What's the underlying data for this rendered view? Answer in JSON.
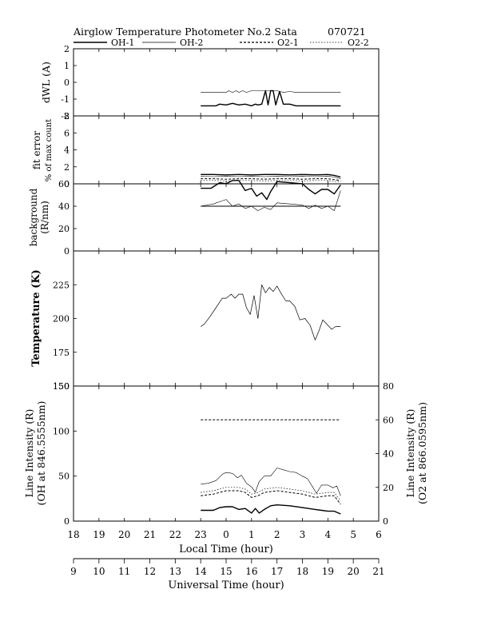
{
  "header": {
    "title": "Airglow Temperature Photometer No.2  Sata",
    "date": "070721"
  },
  "legend": [
    {
      "name": "OH-1",
      "style": "solid-thick"
    },
    {
      "name": "OH-2",
      "style": "solid-thin"
    },
    {
      "name": "O2-1",
      "style": "dashed"
    },
    {
      "name": "O2-2",
      "style": "dotted"
    }
  ],
  "chart_data": [
    {
      "type": "line",
      "panel": "dwl",
      "ylabel": "dWL (A)",
      "ylim": [
        -2,
        2
      ],
      "yticks": [
        "-2",
        "-1",
        "0",
        "1",
        "2"
      ],
      "series": [
        {
          "name": "OH-1",
          "x": [
            14.0,
            14.6,
            14.75,
            15.0,
            15.25,
            15.5,
            15.75,
            16.0,
            16.15,
            16.25,
            16.4,
            16.55,
            16.65,
            16.75,
            16.85,
            16.95,
            17.1,
            17.25,
            17.35,
            17.5,
            17.75,
            18.0,
            18.5,
            19.0,
            19.5
          ],
          "y": [
            -1.4,
            -1.4,
            -1.3,
            -1.35,
            -1.25,
            -1.35,
            -1.3,
            -1.4,
            -1.3,
            -1.35,
            -1.3,
            -0.5,
            -1.35,
            -0.5,
            -0.5,
            -1.35,
            -0.55,
            -1.3,
            -1.3,
            -1.3,
            -1.4,
            -1.4,
            -1.4,
            -1.4,
            -1.4
          ]
        },
        {
          "name": "OH-2",
          "x": [
            14.0,
            14.5,
            15.0,
            15.1,
            15.25,
            15.4,
            15.5,
            15.65,
            15.8,
            16.0,
            16.5,
            17.0,
            17.25,
            17.5,
            17.75,
            18.0,
            18.5,
            19.0,
            19.5
          ],
          "y": [
            -0.6,
            -0.6,
            -0.6,
            -0.5,
            -0.6,
            -0.5,
            -0.6,
            -0.5,
            -0.6,
            -0.5,
            -0.5,
            -0.5,
            -0.6,
            -0.55,
            -0.6,
            -0.6,
            -0.6,
            -0.6,
            -0.6
          ]
        }
      ]
    },
    {
      "type": "line",
      "panel": "fit",
      "ylabel": "fit error",
      "ylabel2": "% of max count",
      "ylim": [
        0,
        8
      ],
      "yticks": [
        "0",
        "2",
        "4",
        "6",
        "8"
      ],
      "series": [
        {
          "name": "OH-1",
          "x": [
            14.0,
            14.5,
            15.0,
            15.5,
            16.0,
            16.5,
            17.0,
            17.5,
            18.0,
            18.5,
            19.0,
            19.25,
            19.5
          ],
          "y": [
            1.1,
            1.1,
            1.05,
            1.1,
            1.05,
            1.1,
            1.1,
            1.05,
            1.1,
            1.05,
            1.1,
            1.0,
            0.8
          ]
        },
        {
          "name": "OH-2",
          "x": [
            14.0,
            14.5,
            15.0,
            15.5,
            16.0,
            16.5,
            17.0,
            17.5,
            18.0,
            18.5,
            19.0,
            19.25,
            19.5
          ],
          "y": [
            0.9,
            0.85,
            0.9,
            0.85,
            0.9,
            0.85,
            0.9,
            0.85,
            0.9,
            0.85,
            0.9,
            0.8,
            0.6
          ]
        },
        {
          "name": "O2-1",
          "x": [
            14.0,
            14.5,
            15.0,
            15.5,
            16.0,
            16.5,
            17.0,
            17.5,
            18.0,
            18.5,
            19.0,
            19.25,
            19.5
          ],
          "y": [
            0.6,
            0.6,
            0.55,
            0.6,
            0.6,
            0.55,
            0.6,
            0.6,
            0.55,
            0.6,
            0.6,
            0.5,
            0.4
          ]
        },
        {
          "name": "O2-2",
          "x": [
            14.0,
            14.5,
            15.0,
            15.5,
            16.0,
            16.5,
            17.0,
            17.5,
            18.0,
            18.5,
            19.0,
            19.25,
            19.5
          ],
          "y": [
            0.4,
            0.4,
            0.35,
            0.4,
            0.4,
            0.35,
            0.4,
            0.4,
            0.35,
            0.4,
            0.4,
            0.3,
            0.25
          ]
        }
      ]
    },
    {
      "type": "line",
      "panel": "background",
      "ylabel": "background",
      "ylabel2": "(R/nm)",
      "ylim": [
        0,
        60
      ],
      "yticks": [
        "0",
        "20",
        "40",
        "60"
      ],
      "series": [
        {
          "name": "OH-1",
          "x": [
            14.0,
            14.4,
            14.75,
            15.0,
            15.25,
            15.5,
            15.75,
            16.0,
            16.2,
            16.4,
            16.6,
            16.75,
            17.0,
            17.5,
            18.0,
            18.25,
            18.5,
            18.75,
            19.0,
            19.25,
            19.5
          ],
          "y": [
            56,
            56,
            61,
            60,
            63,
            63,
            54,
            56,
            49,
            52,
            46,
            53,
            62,
            61,
            60,
            55,
            51,
            55,
            55,
            51,
            59
          ]
        },
        {
          "name": "OH-2",
          "x": [
            14.0,
            14.5,
            14.75,
            15.0,
            15.25,
            15.5,
            15.75,
            16.0,
            16.25,
            16.5,
            16.75,
            17.0,
            17.5,
            18.0,
            18.25,
            18.5,
            18.75,
            19.0,
            19.25,
            19.5
          ],
          "y": [
            40,
            42,
            44,
            46,
            40,
            42,
            38,
            40,
            36,
            39,
            37,
            43,
            42,
            41,
            38,
            41,
            38,
            40,
            36,
            54
          ]
        },
        {
          "name": "OH-1 ref",
          "x": [
            14.0,
            19.5
          ],
          "y": [
            40,
            40
          ]
        }
      ]
    },
    {
      "type": "line",
      "panel": "temperature",
      "ylabel": "Temperature (K)",
      "ylim": [
        150,
        250
      ],
      "yticks": [
        "150",
        "175",
        "200",
        "225"
      ],
      "series": [
        {
          "name": "Temperature",
          "x": [
            14.0,
            14.15,
            14.35,
            14.6,
            14.85,
            15.0,
            15.2,
            15.35,
            15.5,
            15.65,
            15.8,
            15.95,
            16.1,
            16.25,
            16.4,
            16.55,
            16.7,
            16.85,
            17.0,
            17.15,
            17.35,
            17.5,
            17.7,
            17.9,
            18.1,
            18.3,
            18.5,
            18.65,
            18.8,
            19.0,
            19.15,
            19.3,
            19.5
          ],
          "y": [
            194,
            196,
            201,
            208,
            215,
            215,
            218,
            215,
            218,
            218,
            208,
            203,
            217,
            200,
            225,
            219,
            223,
            220,
            224,
            219,
            213,
            213,
            209,
            199,
            200,
            195,
            184,
            191,
            199,
            195,
            192,
            194,
            194
          ]
        }
      ]
    },
    {
      "type": "line",
      "panel": "intensity",
      "ylabel": "Line Intensity (R)",
      "ylabel2": "(OH at 846.5555nm)",
      "y2label": "Line Intensity (R)",
      "y2label2": "(O2 at 866.0595nm)",
      "ylim": [
        0,
        150
      ],
      "yticks": [
        "0",
        "50",
        "100",
        "150"
      ],
      "y2lim": [
        0,
        80
      ],
      "y2ticks": [
        "0",
        "20",
        "40",
        "60",
        "80"
      ],
      "series": [
        {
          "name": "OH-1",
          "axis": "left",
          "x": [
            14.0,
            14.5,
            14.75,
            15.0,
            15.25,
            15.5,
            15.75,
            16.0,
            16.15,
            16.3,
            16.5,
            16.75,
            17.0,
            17.5,
            18.0,
            18.5,
            18.75,
            19.0,
            19.25,
            19.5
          ],
          "y": [
            12,
            12,
            15,
            16,
            16,
            13,
            14,
            9,
            14,
            9,
            13,
            17,
            18,
            17,
            15,
            13,
            12,
            11,
            11,
            8
          ]
        },
        {
          "name": "OH-2",
          "axis": "left",
          "x": [
            14.0,
            14.3,
            14.6,
            14.85,
            15.0,
            15.25,
            15.45,
            15.6,
            15.8,
            16.0,
            16.15,
            16.3,
            16.5,
            16.75,
            17.0,
            17.25,
            17.5,
            17.75,
            18.0,
            18.2,
            18.4,
            18.55,
            18.75,
            19.0,
            19.2,
            19.35,
            19.5
          ],
          "y": [
            41,
            42,
            45,
            52,
            54,
            53,
            48,
            51,
            42,
            38,
            32,
            44,
            50,
            50,
            59,
            57,
            55,
            54,
            50,
            47,
            38,
            31,
            40,
            40,
            37,
            39,
            28
          ]
        },
        {
          "name": "O2-1",
          "axis": "right",
          "x": [
            14.0,
            14.5,
            15.0,
            15.5,
            15.75,
            16.0,
            16.25,
            16.5,
            17.0,
            17.5,
            18.0,
            18.5,
            19.0,
            19.25,
            19.5
          ],
          "y": [
            60,
            60,
            60,
            60,
            60,
            60,
            60,
            60,
            60,
            60,
            60,
            60,
            60,
            60,
            60
          ]
        },
        {
          "name": "O2-1",
          "axis": "right",
          "x": [
            14.0,
            14.5,
            15.0,
            15.5,
            15.75,
            16.0,
            16.25,
            16.5,
            17.0,
            17.5,
            18.0,
            18.5,
            19.0,
            19.25,
            19.5
          ],
          "y": [
            15,
            16,
            18,
            18,
            17,
            14,
            15,
            17,
            18,
            17,
            16,
            14,
            15,
            15,
            10
          ]
        },
        {
          "name": "O2-2",
          "axis": "right",
          "x": [
            14.0,
            14.5,
            15.0,
            15.5,
            15.75,
            16.0,
            16.25,
            16.5,
            17.0,
            17.5,
            18.0,
            18.5,
            19.0,
            19.25,
            19.5
          ],
          "y": [
            17,
            18,
            20,
            20,
            19,
            16,
            17,
            19,
            20,
            19,
            18,
            16,
            17,
            17,
            12
          ]
        }
      ]
    }
  ],
  "xaxes": {
    "local": {
      "label": "Local Time (hour)",
      "ticks": [
        "18",
        "19",
        "20",
        "21",
        "22",
        "23",
        "0",
        "1",
        "2",
        "3",
        "4",
        "5",
        "6"
      ]
    },
    "ut": {
      "label": "Universal Time (hour)",
      "ticks": [
        "9",
        "10",
        "11",
        "12",
        "13",
        "14",
        "15",
        "16",
        "17",
        "18",
        "19",
        "20",
        "21"
      ]
    }
  }
}
